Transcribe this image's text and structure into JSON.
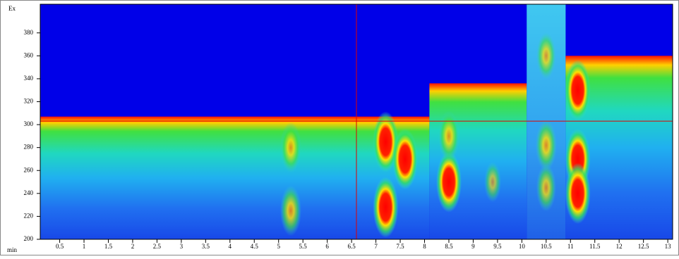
{
  "chart_data": {
    "type": "heatmap",
    "x_label": "min",
    "y_label": "Ex",
    "xlim": [
      0.1,
      13.1
    ],
    "ylim": [
      200,
      405
    ],
    "xticks": [
      0.5,
      1,
      1.5,
      2,
      2.5,
      3,
      3.5,
      4,
      4.5,
      5,
      5.5,
      6,
      6.5,
      7,
      7.5,
      8,
      8.5,
      9,
      9.5,
      10,
      10.5,
      11,
      11.5,
      12,
      12.5,
      13
    ],
    "yticks": [
      200,
      220,
      240,
      260,
      280,
      300,
      320,
      340,
      360,
      380
    ],
    "segments": [
      {
        "x": [
          0.1,
          8.1
        ],
        "ceiling": 307,
        "intensity": 1
      },
      {
        "x": [
          8.1,
          10.1
        ],
        "ceiling": 336,
        "intensity": 1
      },
      {
        "x": [
          10.1,
          10.9
        ],
        "ceiling": 405,
        "intensity": 0.4
      },
      {
        "x": [
          10.9,
          13.1
        ],
        "ceiling": 360,
        "intensity": 1
      }
    ],
    "peaks": [
      {
        "x": 5.25,
        "y": 280,
        "intensity": 0.7
      },
      {
        "x": 5.25,
        "y": 225,
        "intensity": 0.7
      },
      {
        "x": 7.2,
        "y": 285,
        "intensity": 1
      },
      {
        "x": 7.2,
        "y": 228,
        "intensity": 1
      },
      {
        "x": 7.6,
        "y": 270,
        "intensity": 1
      },
      {
        "x": 8.5,
        "y": 250,
        "intensity": 1
      },
      {
        "x": 8.5,
        "y": 290,
        "intensity": 0.7
      },
      {
        "x": 9.4,
        "y": 250,
        "intensity": 0.4
      },
      {
        "x": 10.5,
        "y": 360,
        "intensity": 0.6
      },
      {
        "x": 10.5,
        "y": 282,
        "intensity": 0.7
      },
      {
        "x": 10.5,
        "y": 245,
        "intensity": 0.6
      },
      {
        "x": 11.15,
        "y": 330,
        "intensity": 1
      },
      {
        "x": 11.15,
        "y": 270,
        "intensity": 1
      },
      {
        "x": 11.15,
        "y": 240,
        "intensity": 1
      }
    ],
    "cursor": {
      "x": 6.6,
      "y": 303,
      "color": "#e00000"
    }
  }
}
